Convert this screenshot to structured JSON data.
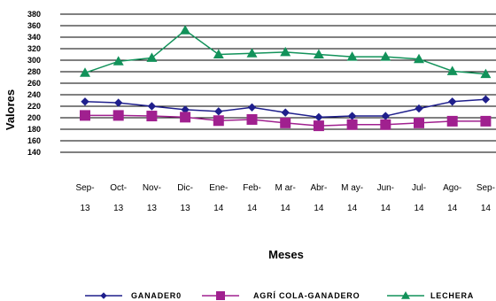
{
  "chart_data": {
    "type": "line",
    "title": "",
    "xlabel": "Meses",
    "ylabel": "Valores",
    "ylim": [
      140,
      380
    ],
    "ytick_step": 20,
    "grid": true,
    "legend_position": "bottom",
    "categories": [
      [
        "Sep-",
        "13"
      ],
      [
        "Oct-",
        "13"
      ],
      [
        "Nov-",
        "13"
      ],
      [
        "Dic-",
        "13"
      ],
      [
        "Ene-",
        "14"
      ],
      [
        "Feb-",
        "14"
      ],
      [
        "M ar-",
        "14"
      ],
      [
        "Abr-",
        "14"
      ],
      [
        "M ay-",
        "14"
      ],
      [
        "Jun-",
        "14"
      ],
      [
        "Jul-",
        "14"
      ],
      [
        "Ago-",
        "14"
      ],
      [
        "Sep-",
        "14"
      ]
    ],
    "series": [
      {
        "name": "GANADER0",
        "color": "#1f1f8c",
        "marker": "diamond",
        "values": [
          228,
          226,
          220,
          214,
          211,
          218,
          209,
          201,
          203,
          203,
          216,
          228,
          232
        ]
      },
      {
        "name": "AGRÍ COLA-GANADERO",
        "color": "#a0208f",
        "marker": "square",
        "values": [
          204,
          204,
          203,
          201,
          195,
          197,
          191,
          186,
          188,
          188,
          191,
          194,
          194
        ]
      },
      {
        "name": "LECHERA",
        "color": "#12925a",
        "marker": "triangle",
        "values": [
          278,
          298,
          304,
          352,
          310,
          312,
          314,
          310,
          306,
          306,
          302,
          281,
          276
        ]
      }
    ]
  }
}
